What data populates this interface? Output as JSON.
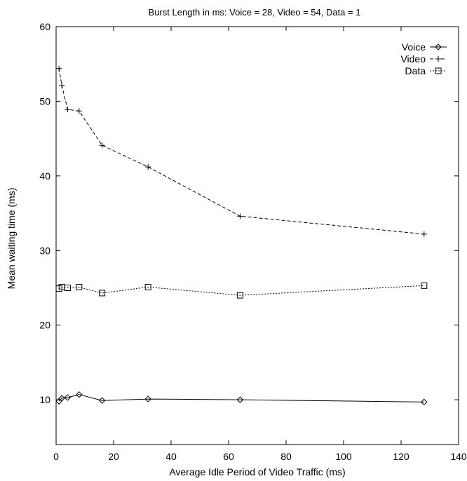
{
  "chart_data": {
    "type": "line",
    "title": "Burst Length in ms: Voice = 28, Video = 54, Data = 1",
    "xlabel": "Average Idle Period of Video Traffic (ms)",
    "ylabel": "Mean waiting time (ms)",
    "xlim": [
      0,
      140
    ],
    "ylim": [
      4,
      60
    ],
    "xticks": [
      0,
      20,
      40,
      60,
      80,
      100,
      120,
      140
    ],
    "yticks": [
      10,
      20,
      30,
      40,
      50,
      60
    ],
    "grid": false,
    "legend_position": "top-right",
    "series": [
      {
        "name": "Voice",
        "marker": "diamond",
        "dash": "solid",
        "x": [
          1,
          2,
          4,
          8,
          16,
          32,
          64,
          128
        ],
        "values": [
          9.8,
          10.2,
          10.3,
          10.7,
          9.9,
          10.1,
          10.0,
          9.7
        ]
      },
      {
        "name": "Video",
        "marker": "plus",
        "dash": "dashed",
        "x": [
          1,
          2,
          4,
          8,
          16,
          32,
          64,
          128
        ],
        "values": [
          54.4,
          52.1,
          48.9,
          48.7,
          44.1,
          41.2,
          34.6,
          32.2
        ]
      },
      {
        "name": "Data",
        "marker": "square",
        "dash": "dotted",
        "x": [
          1,
          2,
          4,
          8,
          16,
          32,
          64,
          128
        ],
        "values": [
          24.9,
          25.1,
          25.0,
          25.1,
          24.3,
          25.1,
          24.0,
          25.3
        ]
      }
    ]
  }
}
